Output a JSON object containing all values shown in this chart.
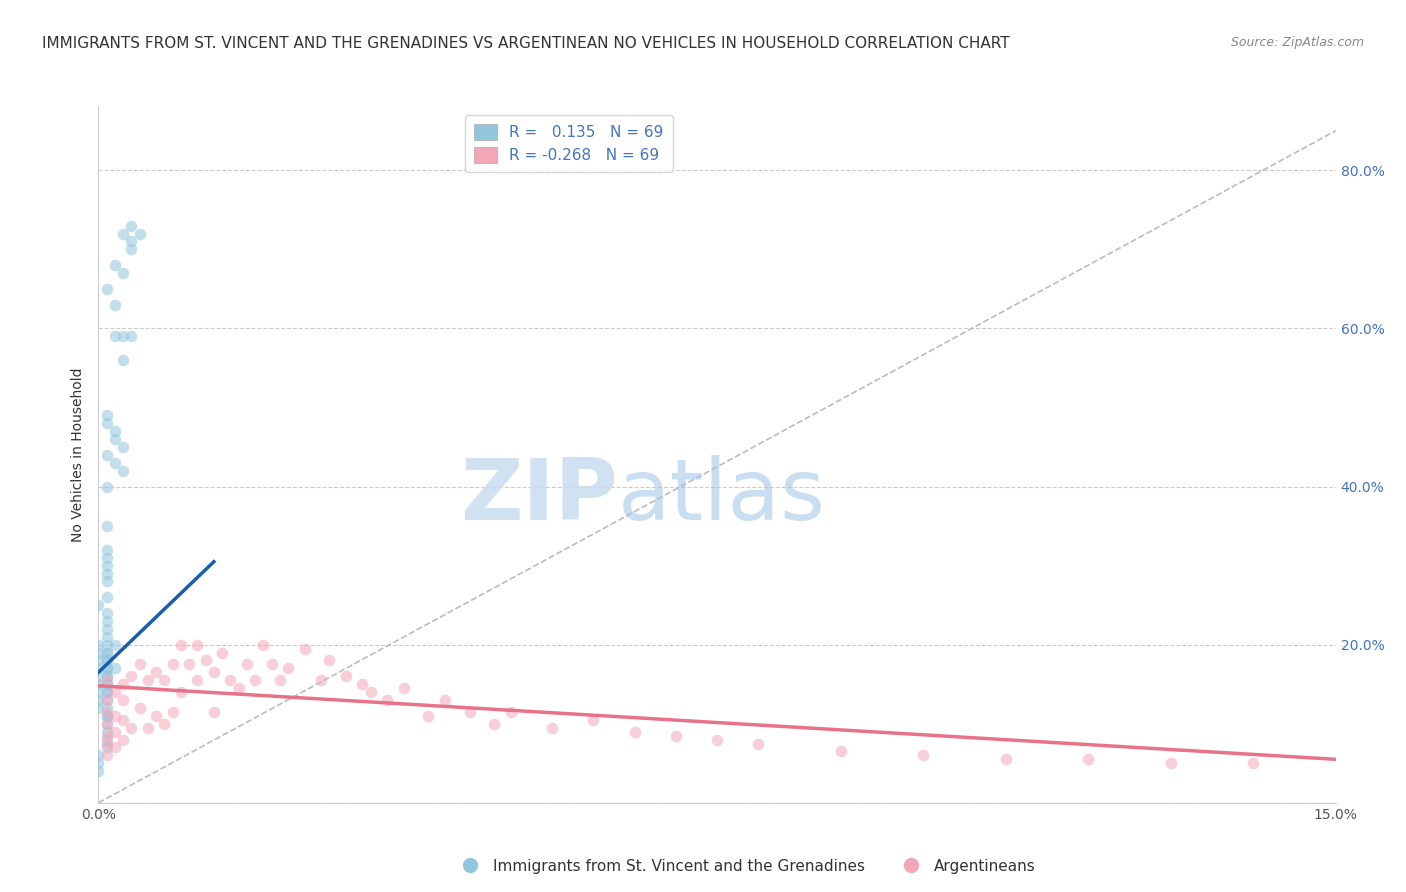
{
  "title": "IMMIGRANTS FROM ST. VINCENT AND THE GRENADINES VS ARGENTINEAN NO VEHICLES IN HOUSEHOLD CORRELATION CHART",
  "source": "Source: ZipAtlas.com",
  "ylabel": "No Vehicles in Household",
  "x_min": 0.0,
  "x_max": 0.15,
  "y_min": 0.0,
  "y_max": 0.88,
  "legend_label1": "Immigrants from St. Vincent and the Grenadines",
  "legend_label2": "Argentineans",
  "color_blue": "#92C5DE",
  "color_pink": "#F4A6B8",
  "color_blue_line": "#1A5FAB",
  "color_pink_line": "#E8728A",
  "color_diag": "#BBBBBB",
  "watermark_zip": "ZIP",
  "watermark_atlas": "atlas",
  "blue_dots_x": [
    0.003,
    0.004,
    0.004,
    0.005,
    0.004,
    0.002,
    0.003,
    0.001,
    0.002,
    0.002,
    0.003,
    0.004,
    0.003,
    0.001,
    0.001,
    0.002,
    0.002,
    0.003,
    0.001,
    0.002,
    0.003,
    0.001,
    0.001,
    0.001,
    0.001,
    0.001,
    0.001,
    0.001,
    0.001,
    0.0,
    0.001,
    0.001,
    0.001,
    0.001,
    0.001,
    0.002,
    0.001,
    0.001,
    0.001,
    0.002,
    0.001,
    0.001,
    0.001,
    0.0,
    0.0,
    0.001,
    0.001,
    0.001,
    0.001,
    0.001,
    0.001,
    0.001,
    0.001,
    0.001,
    0.001,
    0.001,
    0.001,
    0.001,
    0.001,
    0.0,
    0.0,
    0.0,
    0.0,
    0.0,
    0.0,
    0.0,
    0.0,
    0.0,
    0.0
  ],
  "blue_dots_y": [
    0.72,
    0.73,
    0.7,
    0.72,
    0.71,
    0.68,
    0.67,
    0.65,
    0.63,
    0.59,
    0.59,
    0.59,
    0.56,
    0.49,
    0.48,
    0.47,
    0.46,
    0.45,
    0.44,
    0.43,
    0.42,
    0.4,
    0.35,
    0.32,
    0.31,
    0.3,
    0.29,
    0.28,
    0.26,
    0.25,
    0.24,
    0.23,
    0.22,
    0.21,
    0.2,
    0.2,
    0.19,
    0.18,
    0.17,
    0.17,
    0.16,
    0.15,
    0.14,
    0.13,
    0.12,
    0.11,
    0.1,
    0.09,
    0.08,
    0.07,
    0.19,
    0.18,
    0.17,
    0.16,
    0.15,
    0.14,
    0.13,
    0.12,
    0.11,
    0.2,
    0.19,
    0.18,
    0.17,
    0.16,
    0.15,
    0.14,
    0.06,
    0.05,
    0.04
  ],
  "pink_dots_x": [
    0.001,
    0.001,
    0.001,
    0.001,
    0.001,
    0.001,
    0.001,
    0.002,
    0.002,
    0.002,
    0.002,
    0.003,
    0.003,
    0.003,
    0.003,
    0.004,
    0.004,
    0.005,
    0.005,
    0.006,
    0.006,
    0.007,
    0.007,
    0.008,
    0.008,
    0.009,
    0.009,
    0.01,
    0.01,
    0.011,
    0.012,
    0.012,
    0.013,
    0.014,
    0.014,
    0.015,
    0.016,
    0.017,
    0.018,
    0.019,
    0.02,
    0.021,
    0.022,
    0.023,
    0.025,
    0.027,
    0.028,
    0.03,
    0.032,
    0.033,
    0.035,
    0.037,
    0.04,
    0.042,
    0.045,
    0.048,
    0.05,
    0.055,
    0.06,
    0.065,
    0.07,
    0.075,
    0.08,
    0.09,
    0.1,
    0.11,
    0.12,
    0.13,
    0.14
  ],
  "pink_dots_y": [
    0.155,
    0.13,
    0.115,
    0.1,
    0.085,
    0.075,
    0.06,
    0.14,
    0.11,
    0.09,
    0.07,
    0.15,
    0.13,
    0.105,
    0.08,
    0.16,
    0.095,
    0.175,
    0.12,
    0.155,
    0.095,
    0.165,
    0.11,
    0.155,
    0.1,
    0.175,
    0.115,
    0.2,
    0.14,
    0.175,
    0.2,
    0.155,
    0.18,
    0.165,
    0.115,
    0.19,
    0.155,
    0.145,
    0.175,
    0.155,
    0.2,
    0.175,
    0.155,
    0.17,
    0.195,
    0.155,
    0.18,
    0.16,
    0.15,
    0.14,
    0.13,
    0.145,
    0.11,
    0.13,
    0.115,
    0.1,
    0.115,
    0.095,
    0.105,
    0.09,
    0.085,
    0.08,
    0.075,
    0.065,
    0.06,
    0.055,
    0.055,
    0.05,
    0.05
  ],
  "blue_line_x": [
    0.0,
    0.014
  ],
  "blue_line_y": [
    0.165,
    0.305
  ],
  "pink_line_x": [
    0.0,
    0.15
  ],
  "pink_line_y": [
    0.148,
    0.055
  ],
  "diag_line_x": [
    0.0,
    0.15
  ],
  "diag_line_y": [
    0.0,
    0.85
  ],
  "grid_color": "#CCCCCC",
  "background_color": "#FFFFFF",
  "title_fontsize": 11,
  "axis_label_fontsize": 10,
  "tick_fontsize": 10,
  "dot_size": 70,
  "dot_alpha": 0.55
}
